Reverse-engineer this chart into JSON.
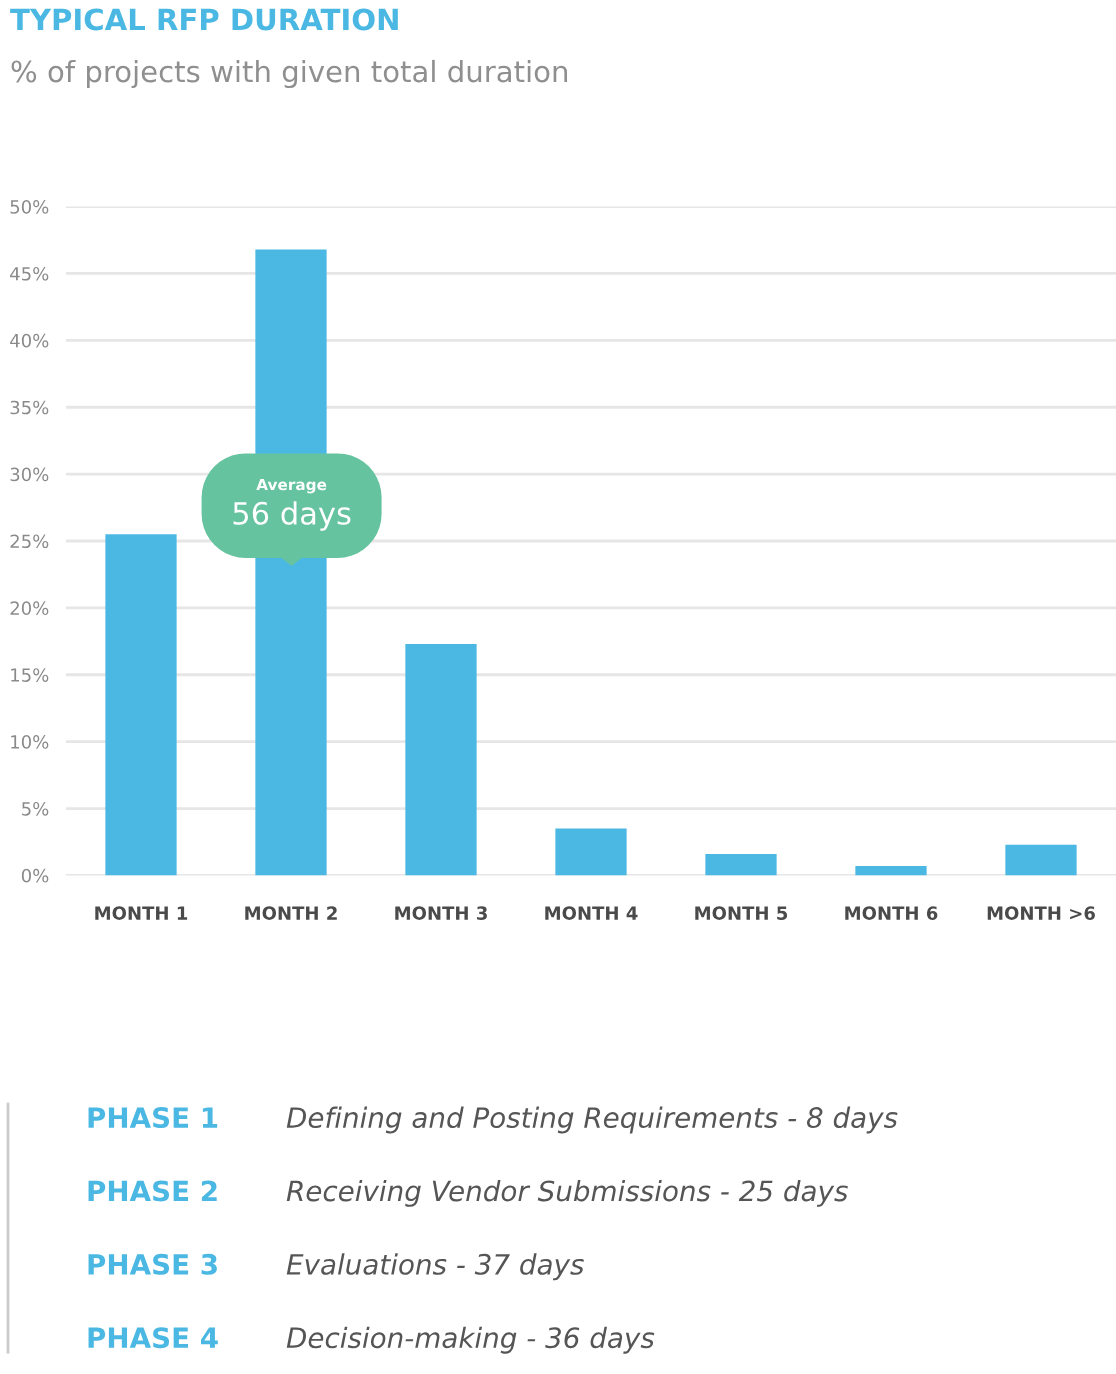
{
  "chart_data": {
    "type": "bar",
    "title": "TYPICAL RFP DURATION",
    "subtitle": "% of projects with given total duration",
    "categories": [
      "MONTH 1",
      "MONTH 2",
      "MONTH 3",
      "MONTH 4",
      "MONTH 5",
      "MONTH 6",
      "MONTH >6"
    ],
    "values": [
      25.5,
      46.8,
      17.3,
      3.5,
      1.6,
      0.7,
      2.3
    ],
    "color": "#4ab8e3",
    "ylim": [
      0,
      50
    ],
    "yticks": [
      {
        "value": 0,
        "label": "0%"
      },
      {
        "value": 5,
        "label": "5%"
      },
      {
        "value": 10,
        "label": "10%"
      },
      {
        "value": 15,
        "label": "15%"
      },
      {
        "value": 20,
        "label": "20%"
      },
      {
        "value": 25,
        "label": "25%"
      },
      {
        "value": 30,
        "label": "30%"
      },
      {
        "value": 35,
        "label": "35%"
      },
      {
        "value": 40,
        "label": "40%"
      },
      {
        "value": 45,
        "label": "45%"
      },
      {
        "value": 50,
        "label": "50%"
      }
    ],
    "grid": "y",
    "annotations": [
      "Average\n56 days",
      "PHASE 1",
      "Defining and Posting Requirements - 8 days",
      "PHASE 2",
      "Receiving Vendor Submissions - 25 days",
      "PHASE 3",
      "Evaluations - 37 days",
      "PHASE 4",
      "Decision-making - 36 days"
    ]
  }
}
